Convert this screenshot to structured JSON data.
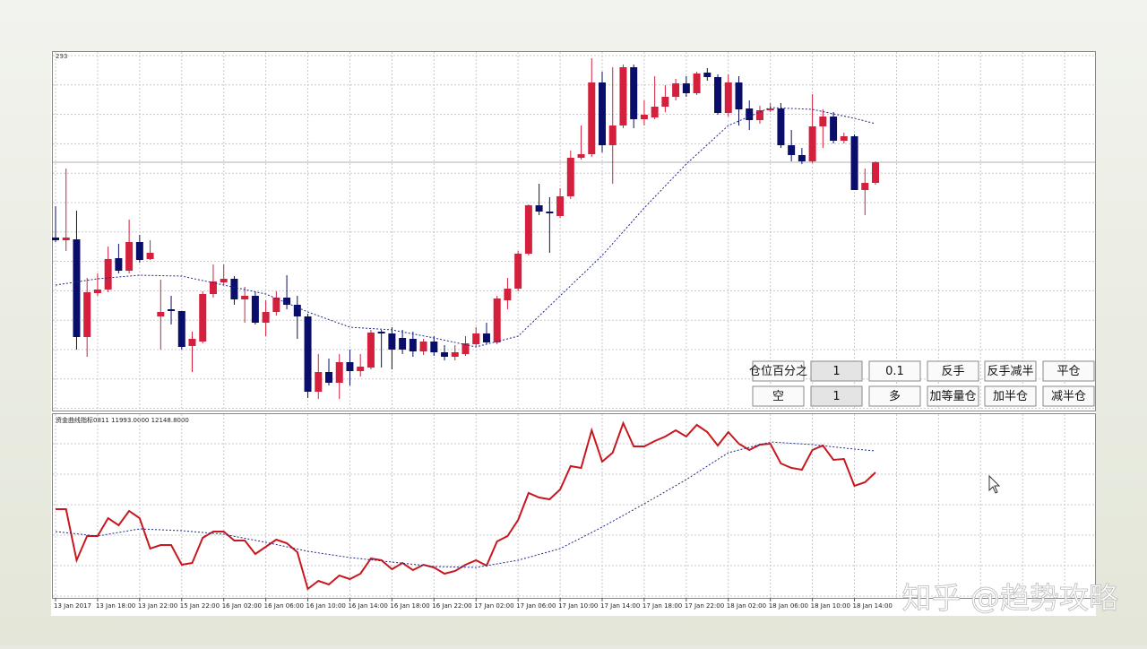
{
  "chart_data": [
    {
      "type": "candlestick",
      "top_label": "293",
      "x": [
        "13 Jan 2017",
        null,
        null,
        null,
        "13 Jan 18:00",
        null,
        null,
        null,
        "13 Jan 22:00",
        null,
        null,
        null,
        "15 Jan 22:00",
        null,
        null,
        null,
        "16 Jan 02:00",
        null,
        null,
        null,
        "16 Jan 06:00",
        null,
        null,
        null,
        "16 Jan 10:00",
        null,
        null,
        null,
        "16 Jan 14:00",
        null,
        null,
        null,
        "16 Jan 18:00",
        null,
        null,
        null,
        "16 Jan 22:00",
        null,
        null,
        null,
        "17 Jan 02:00",
        null,
        null,
        null,
        "17 Jan 06:00",
        null,
        null,
        null,
        "17 Jan 10:00",
        null,
        null,
        null,
        "17 Jan 14:00",
        null,
        null,
        null,
        "17 Jan 18:00",
        null,
        null,
        null,
        "17 Jan 22:00",
        null,
        null,
        null,
        "18 Jan 02:00",
        null,
        null,
        null,
        "18 Jan 06:00",
        null,
        null,
        null,
        "18 Jan 10:00",
        null,
        null,
        null,
        "18 Jan 14:00",
        null,
        null
      ],
      "open": [
        193,
        190,
        191,
        82,
        131,
        135,
        170,
        156,
        188,
        169,
        105,
        113,
        111,
        72,
        77,
        130,
        143,
        147,
        124,
        128,
        98,
        110,
        126,
        118,
        105,
        21,
        43,
        31,
        54,
        44,
        48,
        88,
        86,
        81,
        80,
        66,
        77,
        65,
        60,
        63,
        74,
        86,
        76,
        123,
        136,
        175,
        229,
        222,
        217,
        239,
        282,
        286,
        366,
        296,
        318,
        383,
        325,
        327,
        339,
        350,
        365,
        354,
        377,
        372,
        332,
        366,
        337,
        324,
        335,
        337,
        296,
        285,
        278,
        317,
        328,
        301,
        306,
        246,
        254
      ],
      "high": [
        228,
        270,
        223,
        148,
        153,
        183,
        186,
        213,
        196,
        190,
        146,
        128,
        111,
        88,
        133,
        163,
        163,
        150,
        138,
        133,
        123,
        133,
        151,
        128,
        108,
        63,
        58,
        63,
        68,
        63,
        90,
        90,
        93,
        90,
        88,
        80,
        83,
        73,
        73,
        83,
        93,
        98,
        128,
        148,
        178,
        230,
        253,
        238,
        248,
        290,
        318,
        393,
        378,
        383,
        386,
        386,
        346,
        373,
        363,
        370,
        373,
        378,
        382,
        375,
        375,
        373,
        346,
        340,
        343,
        343,
        313,
        293,
        353,
        336,
        333,
        310,
        308,
        270,
        278
      ],
      "low": [
        188,
        178,
        68,
        60,
        128,
        132,
        153,
        153,
        165,
        168,
        68,
        96,
        68,
        43,
        75,
        126,
        140,
        118,
        98,
        96,
        83,
        106,
        113,
        80,
        14,
        13,
        28,
        13,
        28,
        38,
        46,
        48,
        46,
        63,
        60,
        62,
        61,
        56,
        56,
        61,
        72,
        74,
        74,
        113,
        133,
        173,
        218,
        176,
        215,
        236,
        280,
        283,
        288,
        253,
        315,
        315,
        318,
        325,
        333,
        346,
        350,
        352,
        368,
        330,
        328,
        318,
        313,
        320,
        333,
        293,
        278,
        275,
        276,
        293,
        298,
        298,
        246,
        218,
        252
      ],
      "close": [
        190,
        193,
        82,
        132,
        135,
        169,
        156,
        188,
        168,
        176,
        110,
        111,
        71,
        80,
        130,
        144,
        147,
        124,
        128,
        98,
        110,
        126,
        118,
        105,
        21,
        43,
        31,
        54,
        44,
        49,
        87,
        86,
        68,
        68,
        66,
        77,
        65,
        60,
        65,
        75,
        86,
        76,
        125,
        136,
        175,
        229,
        222,
        220,
        239,
        282,
        286,
        366,
        296,
        318,
        383,
        325,
        330,
        339,
        350,
        365,
        354,
        376,
        372,
        332,
        366,
        336,
        324,
        335,
        337,
        296,
        285,
        278,
        317,
        328,
        301,
        306,
        246,
        254,
        277
      ],
      "up_color": "#d41f3d",
      "down_color": "#0a0e6b",
      "ylim": [
        0,
        401
      ],
      "ma": {
        "color": "#1b2a8c",
        "x": [
          0,
          4,
          8,
          12,
          16,
          20,
          24,
          28,
          32,
          36,
          40,
          44,
          48,
          52,
          56,
          60,
          64,
          68,
          72,
          76,
          78
        ],
        "values": [
          140,
          147,
          151,
          150,
          140,
          130,
          110,
          93,
          90,
          81,
          71,
          83,
          128,
          173,
          226,
          275,
          318,
          338,
          336,
          326,
          320
        ]
      }
    },
    {
      "type": "line",
      "title": "资金曲线指标0811 11993.0000 12148.8000",
      "ylim": [
        0,
        206
      ],
      "series": [
        {
          "color": "#c8171e",
          "values": [
            99,
            99,
            42,
            69,
            69,
            89,
            81,
            97,
            89,
            55,
            59,
            59,
            37,
            39,
            67,
            74,
            74,
            64,
            64,
            49,
            57,
            65,
            61,
            51,
            10,
            19,
            15,
            25,
            21,
            27,
            44,
            42,
            32,
            39,
            31,
            37,
            34,
            27,
            30,
            37,
            42,
            36,
            63,
            69,
            87,
            117,
            112,
            110,
            121,
            147,
            145,
            187,
            152,
            162,
            195,
            169,
            169,
            175,
            180,
            187,
            180,
            193,
            185,
            170,
            185,
            172,
            165,
            171,
            172,
            150,
            145,
            143,
            165,
            170,
            154,
            155,
            125,
            129,
            140
          ]
        },
        {
          "color": "#1b2a8c",
          "x": [
            0,
            4,
            8,
            12,
            16,
            20,
            24,
            28,
            32,
            36,
            40,
            44,
            48,
            52,
            56,
            60,
            64,
            68,
            72,
            76,
            78
          ],
          "values": [
            74,
            69,
            77,
            75,
            71,
            62,
            52,
            45,
            40,
            35,
            34,
            42,
            55,
            79,
            105,
            132,
            162,
            174,
            171,
            166,
            164
          ]
        }
      ]
    }
  ],
  "panel": {
    "buttons": [
      [
        "仓位百分之",
        "1",
        "0.1",
        "反手",
        "反手减半",
        "平仓"
      ],
      [
        "空",
        "1",
        "多",
        "加等量仓",
        "加半仓",
        "减半仓"
      ]
    ]
  },
  "watermark": "知乎 @趋势攻略"
}
